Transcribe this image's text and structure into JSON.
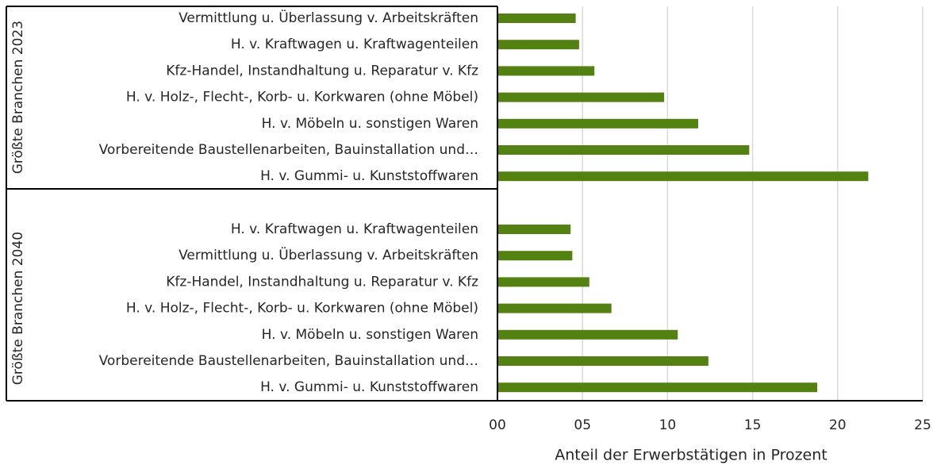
{
  "chart_data": {
    "type": "bar",
    "orientation": "horizontal",
    "color": "#538213",
    "x_label": "Anteil der Erwerbstätigen in Prozent",
    "xlim": [
      0,
      25
    ],
    "xticks": [
      {
        "value": 0,
        "label": "00"
      },
      {
        "value": 5,
        "label": "05"
      },
      10,
      15,
      20,
      25
    ],
    "grid": true,
    "groups": [
      {
        "name": "Größte Branchen 2023",
        "categories": [
          "Vermittlung u. Überlassung v. Arbeitskräften",
          "H. v. Kraftwagen u. Kraftwagenteilen",
          "Kfz-Handel, Instandhaltung u. Reparatur v. Kfz",
          "H. v. Holz-, Flecht-, Korb- u. Korkwaren (ohne Möbel)",
          "H. v. Möbeln u. sonstigen Waren",
          "Vorbereitende Baustellenarbeiten, Bauinstallation und…",
          "H. v. Gummi- u. Kunststoffwaren"
        ],
        "values": [
          4.6,
          4.8,
          5.7,
          9.8,
          11.8,
          14.8,
          21.8
        ]
      },
      {
        "name": "Größte Branchen 2040",
        "categories": [
          "H. v. Kraftwagen u. Kraftwagenteilen",
          "Vermittlung u. Überlassung v. Arbeitskräften",
          "Kfz-Handel, Instandhaltung u. Reparatur v. Kfz",
          "H. v. Holz-, Flecht-, Korb- u. Korkwaren (ohne Möbel)",
          "H. v. Möbeln u. sonstigen Waren",
          "Vorbereitende Baustellenarbeiten, Bauinstallation und…",
          "H. v. Gummi- u. Kunststoffwaren"
        ],
        "values": [
          4.3,
          4.4,
          5.4,
          6.7,
          10.6,
          12.4,
          18.8
        ]
      }
    ]
  }
}
